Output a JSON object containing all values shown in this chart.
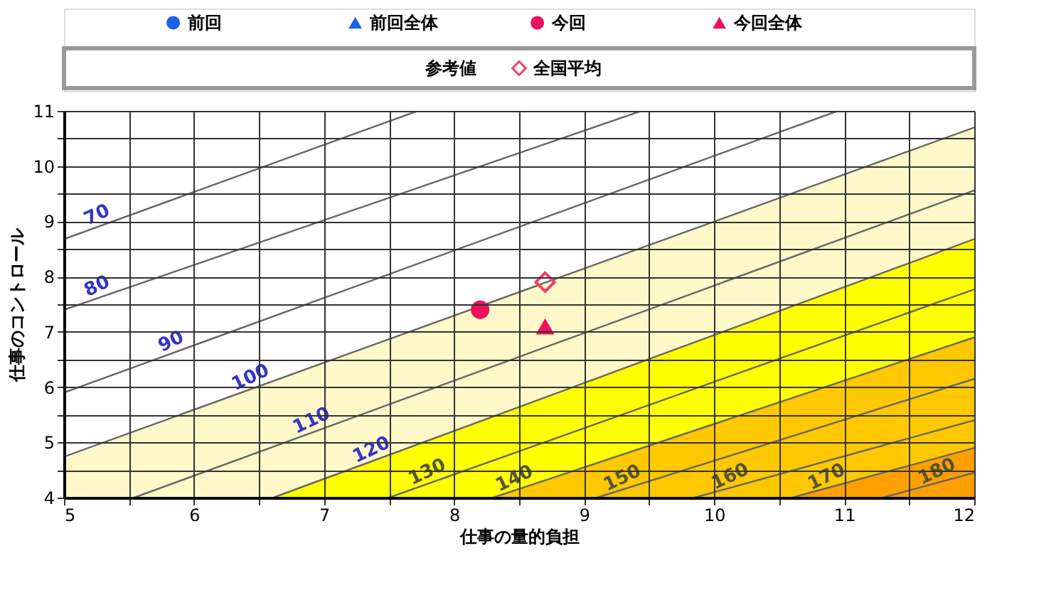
{
  "chart_data": {
    "type": "scatter",
    "xlabel": "仕事の量的負担",
    "ylabel": "仕事のコントロール",
    "xlim": [
      5,
      12
    ],
    "ylim": [
      4,
      11
    ],
    "xticks": [
      5,
      {
        "value": 5.5,
        "label": null
      },
      6,
      {
        "value": 6.5,
        "label": null
      },
      7,
      {
        "value": 7.5,
        "label": null
      },
      8,
      {
        "value": 8.5,
        "label": null
      },
      9,
      {
        "value": 9.5,
        "label": null
      },
      10,
      {
        "value": 10.5,
        "label": null
      },
      11,
      {
        "value": 11.5,
        "label": null
      },
      12
    ],
    "yticks": [
      4,
      {
        "value": 4.5,
        "label": null
      },
      5,
      {
        "value": 5.5,
        "label": null
      },
      6,
      {
        "value": 6.5,
        "label": null
      },
      7,
      {
        "value": 7.5,
        "label": null
      },
      8,
      {
        "value": 8.5,
        "label": null
      },
      9,
      {
        "value": 9.5,
        "label": null
      },
      10,
      {
        "value": 10.5,
        "label": null
      },
      11
    ],
    "grid": true,
    "legend": "top",
    "series": [
      {
        "type": "area",
        "color": "#fff8c8",
        "line_style": "solid",
        "x": [
          5,
          12
        ],
        "values": [
          4.74,
          10.7
        ]
      },
      {
        "type": "area",
        "color": "#ffff00",
        "line_style": "solid",
        "x": [
          6.61,
          12
        ],
        "values": [
          4,
          8.68
        ]
      },
      {
        "type": "area",
        "color": "#ffc800",
        "line_style": "solid",
        "x": [
          8.3,
          12
        ],
        "values": [
          4,
          6.9
        ]
      },
      {
        "type": "area",
        "color": "#ff9f00",
        "line_style": "solid",
        "x": [
          10.6,
          12
        ],
        "values": [
          4,
          4.9
        ]
      },
      {
        "type": "line",
        "color": "#666666",
        "marker": "none",
        "x": [
          5,
          7.72
        ],
        "values": [
          8.68,
          11
        ]
      },
      {
        "type": "line",
        "color": "#666666",
        "marker": "none",
        "x": [
          5,
          9.44
        ],
        "values": [
          7.4,
          11
        ]
      },
      {
        "type": "line",
        "color": "#666666",
        "marker": "none",
        "x": [
          5,
          10.95
        ],
        "values": [
          5.9,
          11
        ]
      },
      {
        "type": "line",
        "color": "#666666",
        "marker": "none",
        "x": [
          5.54,
          12
        ],
        "values": [
          4,
          9.56
        ]
      },
      {
        "type": "line",
        "color": "#666666",
        "marker": "none",
        "x": [
          7.5,
          12
        ],
        "values": [
          4,
          7.77
        ]
      },
      {
        "type": "line",
        "color": "#666666",
        "marker": "none",
        "x": [
          9.1,
          12
        ],
        "values": [
          4,
          6.15
        ]
      },
      {
        "type": "line",
        "color": "#666666",
        "marker": "none",
        "x": [
          9.85,
          12
        ],
        "values": [
          4,
          5.4
        ]
      },
      {
        "type": "line",
        "color": "#666666",
        "marker": "none",
        "x": [
          11.3,
          12
        ],
        "values": [
          4,
          4.45
        ]
      },
      {
        "name": "前回",
        "color": "#1a5ff0",
        "marker": "circle"
      },
      {
        "name": "前回全体",
        "color": "#1a5ff0",
        "marker": "triangle"
      },
      {
        "name": "今回",
        "color": "#f0105a",
        "marker": "circle",
        "x": [
          8.2
        ],
        "values": [
          7.4
        ]
      },
      {
        "name": "今回全体",
        "color": "#f0105a",
        "marker": "triangle",
        "x": [
          8.7
        ],
        "values": [
          7.1
        ]
      },
      {
        "name": "全国平均",
        "color": "#f04060",
        "marker": "diamond",
        "x": [
          8.7
        ],
        "values": [
          7.9
        ]
      }
    ],
    "annotations": [
      "参考値",
      {
        "text": "70",
        "x": 5.29,
        "y": 8.93
      },
      {
        "text": "80",
        "x": 5.29,
        "y": 7.64
      },
      {
        "text": "90",
        "x": 5.86,
        "y": 6.64
      },
      {
        "text": "100",
        "x": 6.47,
        "y": 5.99
      },
      {
        "text": "110",
        "x": 6.94,
        "y": 5.21
      },
      {
        "text": "120",
        "x": 7.4,
        "y": 4.68
      },
      {
        "text": "130",
        "x": 7.83,
        "y": 4.28
      },
      {
        "text": "140",
        "x": 8.5,
        "y": 4.16
      },
      {
        "text": "150",
        "x": 9.33,
        "y": 4.17
      },
      {
        "text": "160",
        "x": 10.16,
        "y": 4.2
      },
      {
        "text": "170",
        "x": 10.9,
        "y": 4.19
      },
      {
        "text": "180",
        "x": 11.75,
        "y": 4.29
      }
    ]
  }
}
